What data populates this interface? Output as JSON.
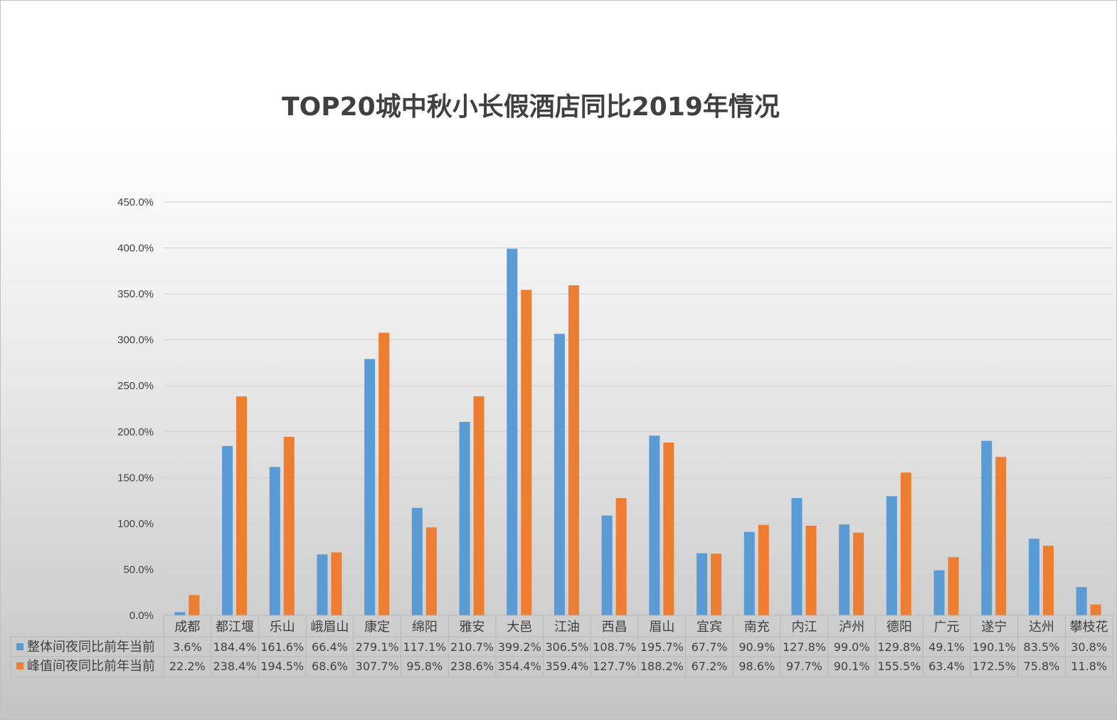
{
  "chart_data": {
    "type": "bar",
    "title": "TOP20城中秋小长假酒店同比2019年情况",
    "ylim": [
      0,
      450
    ],
    "ytick_labels": [
      "0.0%",
      "50.0%",
      "100.0%",
      "150.0%",
      "200.0%",
      "250.0%",
      "300.0%",
      "350.0%",
      "400.0%",
      "450.0%"
    ],
    "grid": true,
    "legend": "data-table",
    "categories": [
      "成都",
      "都江堰",
      "乐山",
      "峨眉山",
      "康定",
      "绵阳",
      "雅安",
      "大邑",
      "江油",
      "西昌",
      "眉山",
      "宜宾",
      "南充",
      "内江",
      "泸州",
      "德阳",
      "广元",
      "遂宁",
      "达州",
      "攀枝花"
    ],
    "series": [
      {
        "name": "整体间夜同比前年当前",
        "color": "#5B9BD5",
        "values": [
          3.6,
          184.4,
          161.6,
          66.4,
          279.1,
          117.1,
          210.7,
          399.2,
          306.5,
          108.7,
          195.7,
          67.7,
          90.9,
          127.8,
          99.0,
          129.8,
          49.1,
          190.1,
          83.5,
          30.8
        ],
        "labels": [
          "3.6%",
          "184.4%",
          "161.6%",
          "66.4%",
          "279.1%",
          "117.1%",
          "210.7%",
          "399.2%",
          "306.5%",
          "108.7%",
          "195.7%",
          "67.7%",
          "90.9%",
          "127.8%",
          "99.0%",
          "129.8%",
          "49.1%",
          "190.1%",
          "83.5%",
          "30.8%"
        ]
      },
      {
        "name": "峰值间夜同比前年当前",
        "color": "#ED7D31",
        "values": [
          22.2,
          238.4,
          194.5,
          68.6,
          307.7,
          95.8,
          238.6,
          354.4,
          359.4,
          127.7,
          188.2,
          67.2,
          98.6,
          97.7,
          90.1,
          155.5,
          63.4,
          172.5,
          75.8,
          11.8
        ],
        "labels": [
          "22.2%",
          "238.4%",
          "194.5%",
          "68.6%",
          "307.7%",
          "95.8%",
          "238.6%",
          "354.4%",
          "359.4%",
          "127.7%",
          "188.2%",
          "67.2%",
          "98.6%",
          "97.7%",
          "90.1%",
          "155.5%",
          "63.4%",
          "172.5%",
          "75.8%",
          "11.8%"
        ]
      }
    ]
  }
}
